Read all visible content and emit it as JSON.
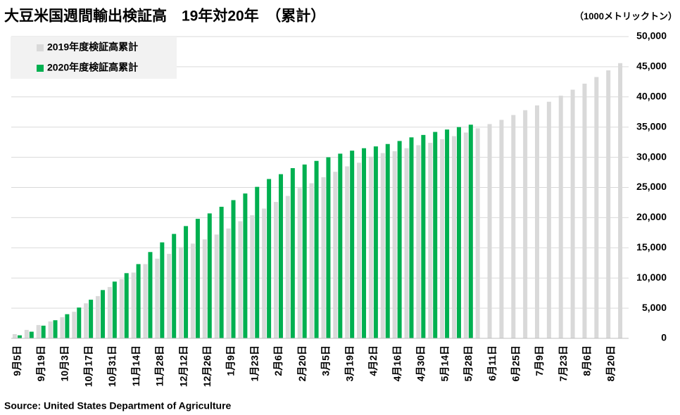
{
  "chart_data": {
    "type": "bar",
    "title": "大豆米国週間輸出検証高　19年対20年　（累計）",
    "unit_label": "（1000メトリックトン）",
    "source": "Source: United States Department of Agriculture",
    "categories": [
      "9月5日",
      null,
      "9月19日",
      null,
      "10月3日",
      null,
      "10月17日",
      null,
      "10月31日",
      null,
      "11月14日",
      null,
      "11月28日",
      null,
      "12月12日",
      null,
      "12月26日",
      null,
      "1月9日",
      null,
      "1月23日",
      null,
      "2月6日",
      null,
      "2月20日",
      null,
      "3月5日",
      null,
      "3月19日",
      null,
      "4月2日",
      null,
      "4月16日",
      null,
      "4月30日",
      null,
      "5月14日",
      null,
      "5月28日",
      null,
      "6月11日",
      null,
      "6月25日",
      null,
      "7月9日",
      null,
      "7月23日",
      null,
      "8月6日",
      null,
      "8月20日",
      null
    ],
    "series": [
      {
        "name": "2019年度検証高累計",
        "color": "#d9d9d9",
        "values": [
          700,
          1400,
          2200,
          2800,
          3500,
          4400,
          5800,
          7000,
          8500,
          9800,
          10900,
          12300,
          13200,
          14000,
          15100,
          15700,
          16400,
          17200,
          18200,
          19400,
          20400,
          21500,
          22600,
          23600,
          24900,
          25700,
          26700,
          27600,
          28500,
          29100,
          30100,
          30700,
          31000,
          31500,
          32000,
          32400,
          33000,
          33500,
          34100,
          34800,
          35500,
          36200,
          37000,
          37800,
          38600,
          39200,
          40200,
          41200,
          42200,
          43300,
          44400,
          45600
        ]
      },
      {
        "name": "2020年度検証高累計",
        "color": "#00b050",
        "values": [
          500,
          1100,
          2100,
          3000,
          4000,
          5100,
          6400,
          8000,
          9400,
          10800,
          12300,
          14300,
          15900,
          17300,
          18600,
          19800,
          20700,
          21800,
          22900,
          24000,
          25100,
          26400,
          27200,
          28200,
          28800,
          29400,
          30000,
          30600,
          31100,
          31500,
          31800,
          32200,
          32700,
          33300,
          33700,
          34200,
          34600,
          35000,
          35400,
          null,
          null,
          null,
          null,
          null,
          null,
          null,
          null,
          null,
          null,
          null,
          null,
          null
        ]
      }
    ],
    "ylim": [
      0,
      50000
    ],
    "yticks": [
      0,
      {
        "value": 5000,
        "label": "5,000"
      },
      {
        "value": 10000,
        "label": "10,000"
      },
      {
        "value": 15000,
        "label": "15,000"
      },
      {
        "value": 20000,
        "label": "20,000"
      },
      {
        "value": 25000,
        "label": "25,000"
      },
      {
        "value": 30000,
        "label": "30,000"
      },
      {
        "value": 35000,
        "label": "35,000"
      },
      {
        "value": 40000,
        "label": "40,000"
      },
      {
        "value": 45000,
        "label": "45,000"
      },
      {
        "value": 50000,
        "label": "50,000"
      }
    ],
    "grid": true,
    "legend": "upper left"
  }
}
